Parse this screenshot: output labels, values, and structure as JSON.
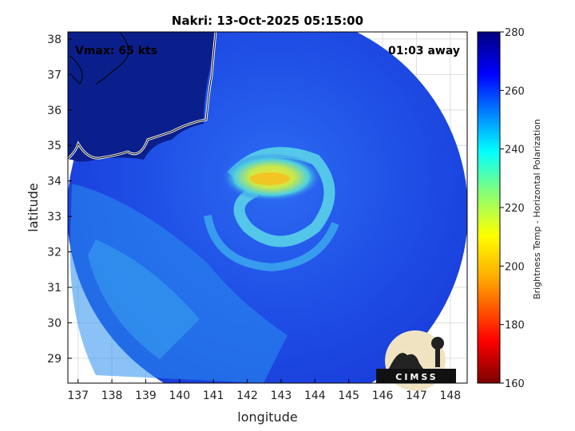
{
  "title": "Nakri: 13-Oct-2025 05:15:00",
  "vmax_label": "Vmax: 65 kts",
  "time_away_label": "01:03 away",
  "x_axis": {
    "label": "longitude",
    "ticks": [
      "137",
      "138",
      "139",
      "140",
      "141",
      "142",
      "143",
      "144",
      "145",
      "146",
      "147",
      "148"
    ],
    "range": [
      136.7,
      148.5
    ]
  },
  "y_axis": {
    "label": "latitude",
    "ticks": [
      "29",
      "30",
      "31",
      "32",
      "33",
      "34",
      "35",
      "36",
      "37",
      "38"
    ],
    "range": [
      28.3,
      38.2
    ]
  },
  "colorbar": {
    "label": "Brightness Temp - Horizontal Polarization",
    "ticks": [
      "160",
      "180",
      "200",
      "220",
      "240",
      "260",
      "280"
    ],
    "range": [
      160,
      280
    ],
    "colors": [
      "#7a0000",
      "#ff0000",
      "#ffaa00",
      "#ffff00",
      "#7fff7f",
      "#00ffff",
      "#0080ff",
      "#0000ff",
      "#000080"
    ]
  },
  "logo_text": "CIMSS",
  "colors": {
    "ocean_blue": "#1a3fe0",
    "land_dark": "#0b1f8c",
    "eye_warm": "#f5d830",
    "frame": "#000000"
  }
}
